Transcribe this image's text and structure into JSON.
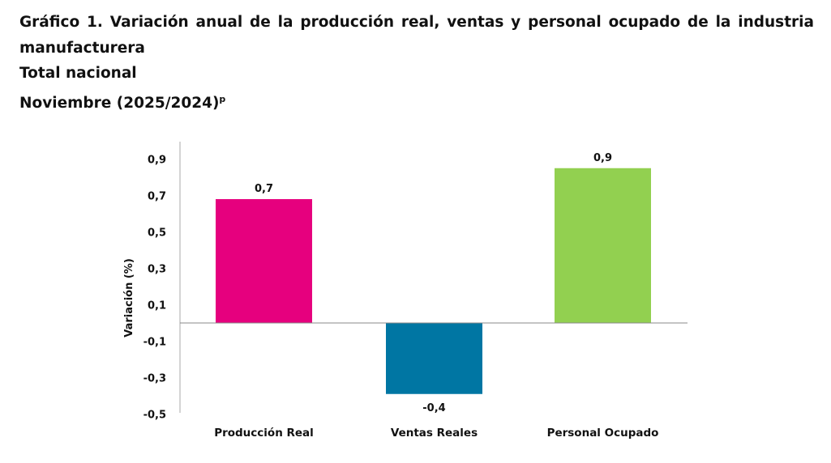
{
  "chart_data": {
    "type": "bar",
    "title_lines": [
      "Gráfico 1. Variación anual de la producción real, ventas y personal ocupado de la industria",
      "manufacturera",
      "Total nacional",
      "Noviembre (2025/2024)"
    ],
    "title_superscript": "p",
    "categories": [
      "Producción Real",
      "Ventas Reales",
      "Personal Ocupado"
    ],
    "values": [
      0.68,
      -0.39,
      0.85
    ],
    "data_labels": [
      "0,7",
      "-0,4",
      "0,9"
    ],
    "colors": [
      "#E6007E",
      "#0076A3",
      "#92D050"
    ],
    "xlabel": "",
    "ylabel": "Variación (%)",
    "ylim": [
      -0.5,
      0.9
    ],
    "yticks": [
      0.9,
      0.7,
      0.5,
      0.3,
      0.1,
      -0.1,
      -0.3,
      -0.5
    ],
    "ytick_labels": [
      "0,9",
      "0,7",
      "0,5",
      "0,3",
      "0,1",
      "-0,1",
      "-0,3",
      "-0,5"
    ],
    "grid": false,
    "legend": "none"
  }
}
